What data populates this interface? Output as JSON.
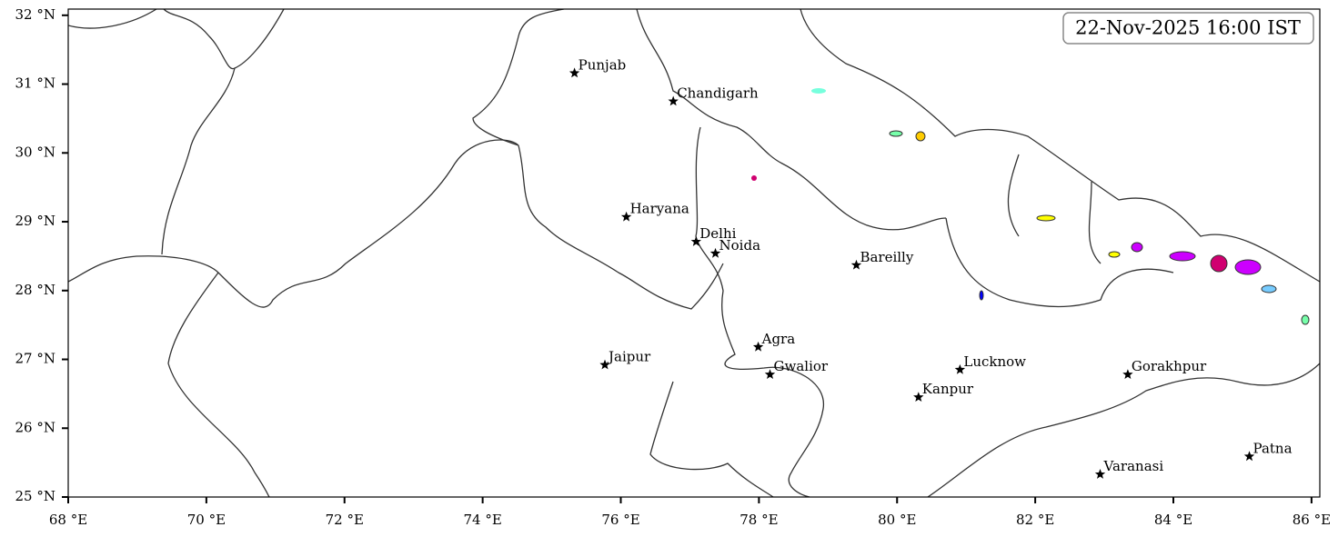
{
  "map": {
    "title": "22-Nov-2025 16:00 IST",
    "xlim": [
      68,
      86.12
    ],
    "ylim": [
      25,
      32.09
    ],
    "xticks": [
      {
        "value": 68,
        "label": "68 °E"
      },
      {
        "value": 70,
        "label": "70 °E"
      },
      {
        "value": 72,
        "label": "72 °E"
      },
      {
        "value": 74,
        "label": "74 °E"
      },
      {
        "value": 76,
        "label": "76 °E"
      },
      {
        "value": 78,
        "label": "78 °E"
      },
      {
        "value": 80,
        "label": "80 °E"
      },
      {
        "value": 82,
        "label": "82 °E"
      },
      {
        "value": 84,
        "label": "84 °E"
      },
      {
        "value": 86,
        "label": "86 °E"
      }
    ],
    "yticks": [
      {
        "value": 25,
        "label": "25 °N"
      },
      {
        "value": 26,
        "label": "26 °N"
      },
      {
        "value": 27,
        "label": "27 °N"
      },
      {
        "value": 28,
        "label": "28 °N"
      },
      {
        "value": 29,
        "label": "29 °N"
      },
      {
        "value": 30,
        "label": "30 °N"
      },
      {
        "value": 31,
        "label": "31 °N"
      },
      {
        "value": 32,
        "label": "32 °N"
      }
    ],
    "cities": [
      {
        "name": "Punjab",
        "lon": 75.33,
        "lat": 31.16
      },
      {
        "name": "Chandigarh",
        "lon": 76.76,
        "lat": 30.75
      },
      {
        "name": "Haryana",
        "lon": 76.08,
        "lat": 29.07
      },
      {
        "name": "Delhi",
        "lon": 77.09,
        "lat": 28.71
      },
      {
        "name": "Noida",
        "lon": 77.37,
        "lat": 28.54
      },
      {
        "name": "Bareilly",
        "lon": 79.41,
        "lat": 28.37
      },
      {
        "name": "Agra",
        "lon": 77.99,
        "lat": 27.18
      },
      {
        "name": "Jaipur",
        "lon": 75.77,
        "lat": 26.92
      },
      {
        "name": "Gwalior",
        "lon": 78.16,
        "lat": 26.78
      },
      {
        "name": "Lucknow",
        "lon": 80.91,
        "lat": 26.85
      },
      {
        "name": "Kanpur",
        "lon": 80.31,
        "lat": 26.45
      },
      {
        "name": "Gorakhpur",
        "lon": 83.34,
        "lat": 26.78
      },
      {
        "name": "Varanasi",
        "lon": 82.94,
        "lat": 25.33
      },
      {
        "name": "Patna",
        "lon": 85.1,
        "lat": 25.59
      }
    ]
  }
}
